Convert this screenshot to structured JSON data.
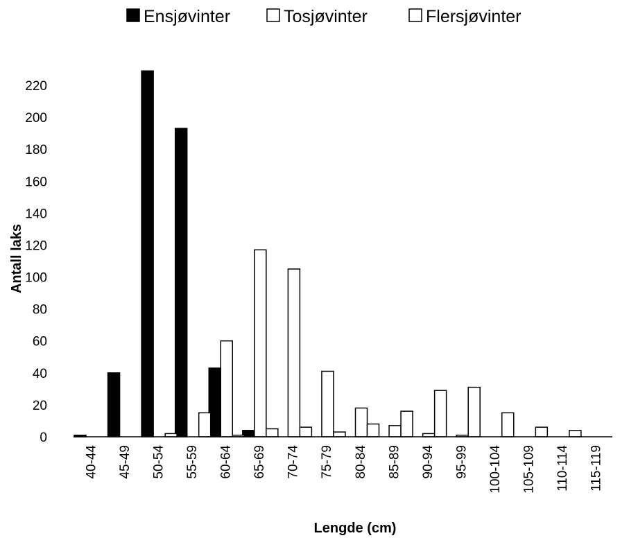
{
  "chart_data": {
    "type": "bar",
    "title": "",
    "xlabel": "Lengde (cm)",
    "ylabel": "Antall laks",
    "ylim": [
      0,
      220
    ],
    "yticks": [
      0,
      20,
      40,
      60,
      80,
      100,
      120,
      140,
      160,
      180,
      200,
      220
    ],
    "grid": false,
    "legend_position": "top",
    "categories": [
      "40-44",
      "45-49",
      "50-54",
      "55-59",
      "60-64",
      "65-69",
      "70-74",
      "75-79",
      "80-84",
      "85-89",
      "90-94",
      "95-99",
      "100-104",
      "105-109",
      "110-114",
      "115-119"
    ],
    "series": [
      {
        "name": "Ensjøvinter",
        "fill": "#000000",
        "values": [
          1,
          40,
          229,
          193,
          43,
          4,
          0,
          0,
          0,
          0,
          0,
          0,
          0,
          0,
          0,
          0
        ]
      },
      {
        "name": "Tosjøvinter",
        "fill": "#ffffff",
        "values": [
          0,
          0,
          0,
          0,
          60,
          117,
          105,
          41,
          18,
          7,
          2,
          1,
          0,
          0,
          0,
          0
        ]
      },
      {
        "name": "Flersjøvinter",
        "fill": "#ffffff",
        "values": [
          0,
          0,
          2,
          15,
          1,
          5,
          6,
          3,
          8,
          16,
          29,
          31,
          15,
          6,
          4,
          0
        ]
      }
    ]
  }
}
